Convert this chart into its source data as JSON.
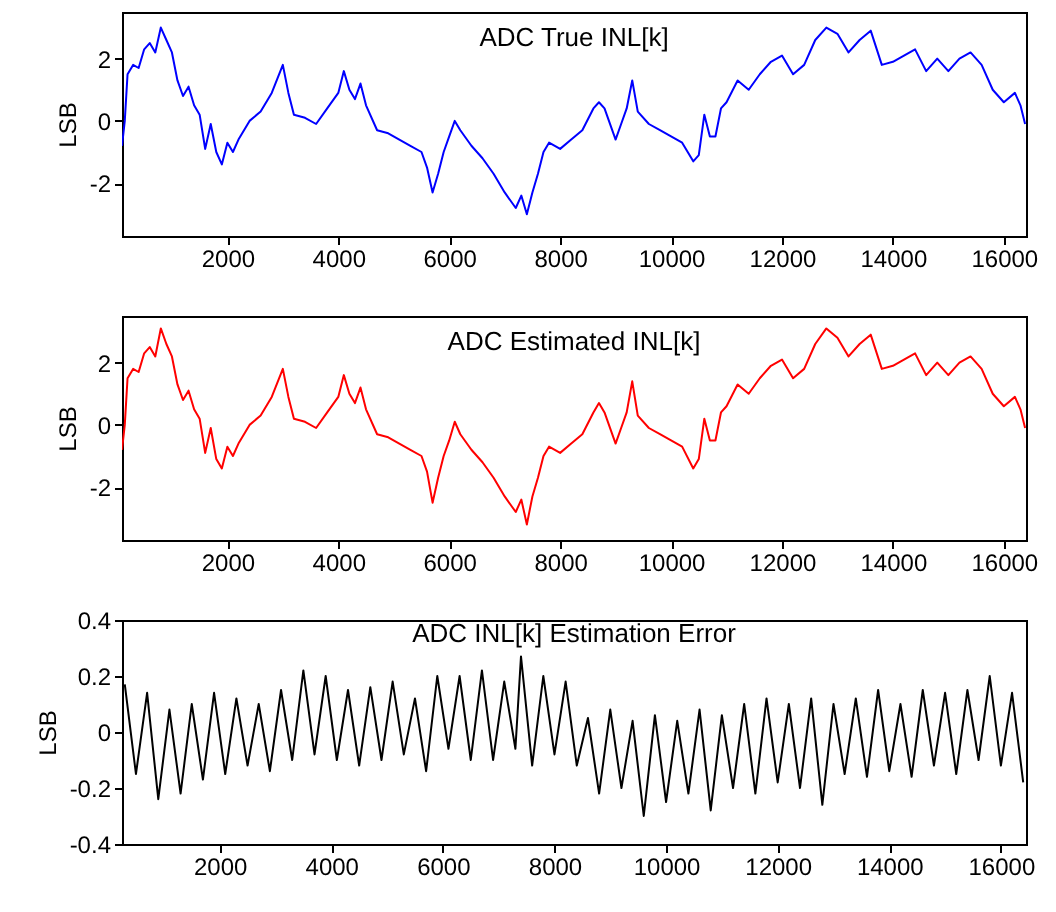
{
  "chart_data": [
    {
      "type": "line",
      "title": "ADC True INL[k]",
      "ylabel": "LSB",
      "xlim": [
        100,
        16400
      ],
      "xticks": [
        2000,
        4000,
        6000,
        8000,
        10000,
        12000,
        14000,
        16000
      ],
      "ylim": [
        -3.7,
        3.5
      ],
      "yticks": [
        -2,
        0,
        2
      ],
      "x": [
        100,
        150,
        200,
        300,
        400,
        500,
        600,
        700,
        800,
        900,
        1000,
        1100,
        1200,
        1300,
        1400,
        1500,
        1600,
        1700,
        1800,
        1900,
        2000,
        2100,
        2200,
        2400,
        2600,
        2800,
        3000,
        3100,
        3200,
        3400,
        3600,
        3800,
        4000,
        4100,
        4200,
        4300,
        4400,
        4500,
        4700,
        4900,
        5100,
        5300,
        5500,
        5600,
        5700,
        5800,
        5900,
        6000,
        6100,
        6200,
        6400,
        6600,
        6800,
        7000,
        7200,
        7300,
        7400,
        7500,
        7600,
        7700,
        7800,
        8000,
        8200,
        8400,
        8600,
        8700,
        8800,
        9000,
        9100,
        9200,
        9300,
        9400,
        9600,
        9800,
        10000,
        10200,
        10400,
        10500,
        10600,
        10700,
        10800,
        10900,
        11000,
        11200,
        11400,
        11600,
        11800,
        12000,
        12200,
        12400,
        12600,
        12800,
        13000,
        13200,
        13400,
        13600,
        13800,
        14000,
        14200,
        14400,
        14600,
        14800,
        15000,
        15200,
        15400,
        15600,
        15800,
        16000,
        16200,
        16300,
        16384
      ],
      "series": [
        {
          "color": "#0000ff",
          "values": [
            -0.8,
            0,
            1.5,
            1.8,
            1.7,
            2.3,
            2.5,
            2.2,
            3.0,
            2.6,
            2.2,
            1.3,
            0.8,
            1.1,
            0.5,
            0.2,
            -0.9,
            -0.1,
            -1.0,
            -1.4,
            -0.7,
            -1.0,
            -0.6,
            0,
            0.3,
            0.9,
            1.8,
            0.9,
            0.2,
            0.1,
            -0.1,
            0.4,
            0.9,
            1.6,
            1.0,
            0.7,
            1.2,
            0.5,
            -0.3,
            -0.4,
            -0.6,
            -0.8,
            -1.0,
            -1.5,
            -2.3,
            -1.7,
            -1.0,
            -0.5,
            0.0,
            -0.3,
            -0.8,
            -1.2,
            -1.7,
            -2.3,
            -2.8,
            -2.4,
            -3.0,
            -2.3,
            -1.7,
            -1.0,
            -0.7,
            -0.9,
            -0.6,
            -0.3,
            0.4,
            0.6,
            0.4,
            -0.6,
            -0.1,
            0.4,
            1.3,
            0.3,
            -0.1,
            -0.3,
            -0.5,
            -0.7,
            -1.3,
            -1.1,
            0.2,
            -0.5,
            -0.5,
            0.4,
            0.6,
            1.3,
            1.0,
            1.5,
            1.9,
            2.1,
            1.5,
            1.8,
            2.6,
            3.0,
            2.8,
            2.2,
            2.6,
            2.9,
            1.8,
            1.9,
            2.1,
            2.3,
            1.6,
            2.0,
            1.6,
            2.0,
            2.2,
            1.8,
            1.0,
            0.6,
            0.9,
            0.5,
            -0.1
          ]
        }
      ]
    },
    {
      "type": "line",
      "title": "ADC Estimated INL[k]",
      "ylabel": "LSB",
      "xlim": [
        100,
        16400
      ],
      "xticks": [
        2000,
        4000,
        6000,
        8000,
        10000,
        12000,
        14000,
        16000
      ],
      "ylim": [
        -3.7,
        3.5
      ],
      "yticks": [
        -2,
        0,
        2
      ],
      "x": [
        100,
        150,
        200,
        300,
        400,
        500,
        600,
        700,
        800,
        900,
        1000,
        1100,
        1200,
        1300,
        1400,
        1500,
        1600,
        1700,
        1800,
        1900,
        2000,
        2100,
        2200,
        2400,
        2600,
        2800,
        3000,
        3100,
        3200,
        3400,
        3600,
        3800,
        4000,
        4100,
        4200,
        4300,
        4400,
        4500,
        4700,
        4900,
        5100,
        5300,
        5500,
        5600,
        5700,
        5800,
        5900,
        6000,
        6100,
        6200,
        6400,
        6600,
        6800,
        7000,
        7200,
        7300,
        7400,
        7500,
        7600,
        7700,
        7800,
        8000,
        8200,
        8400,
        8600,
        8700,
        8800,
        9000,
        9100,
        9200,
        9300,
        9400,
        9600,
        9800,
        10000,
        10200,
        10400,
        10500,
        10600,
        10700,
        10800,
        10900,
        11000,
        11200,
        11400,
        11600,
        11800,
        12000,
        12200,
        12400,
        12600,
        12800,
        13000,
        13200,
        13400,
        13600,
        13800,
        14000,
        14200,
        14400,
        14600,
        14800,
        15000,
        15200,
        15400,
        15600,
        15800,
        16000,
        16200,
        16300,
        16384
      ],
      "series": [
        {
          "color": "#ff0000",
          "values": [
            -0.8,
            0,
            1.5,
            1.8,
            1.7,
            2.3,
            2.5,
            2.2,
            3.1,
            2.6,
            2.2,
            1.3,
            0.8,
            1.1,
            0.5,
            0.2,
            -0.9,
            -0.1,
            -1.1,
            -1.4,
            -0.7,
            -1.0,
            -0.6,
            0,
            0.3,
            0.9,
            1.8,
            0.9,
            0.2,
            0.1,
            -0.1,
            0.4,
            0.9,
            1.6,
            1.0,
            0.7,
            1.2,
            0.5,
            -0.3,
            -0.4,
            -0.6,
            -0.8,
            -1.0,
            -1.5,
            -2.5,
            -1.7,
            -1.0,
            -0.5,
            0.1,
            -0.3,
            -0.8,
            -1.2,
            -1.7,
            -2.3,
            -2.8,
            -2.4,
            -3.2,
            -2.3,
            -1.7,
            -1.0,
            -0.7,
            -0.9,
            -0.6,
            -0.3,
            0.4,
            0.7,
            0.4,
            -0.6,
            -0.1,
            0.4,
            1.4,
            0.3,
            -0.1,
            -0.3,
            -0.5,
            -0.7,
            -1.4,
            -1.1,
            0.2,
            -0.5,
            -0.5,
            0.4,
            0.6,
            1.3,
            1.0,
            1.5,
            1.9,
            2.1,
            1.5,
            1.8,
            2.6,
            3.1,
            2.8,
            2.2,
            2.6,
            2.9,
            1.8,
            1.9,
            2.1,
            2.3,
            1.6,
            2.0,
            1.6,
            2.0,
            2.2,
            1.8,
            1.0,
            0.6,
            0.9,
            0.5,
            -0.1
          ]
        }
      ]
    },
    {
      "type": "line",
      "title": "ADC INL[k] Estimation Error",
      "ylabel": "LSB",
      "xlim": [
        250,
        16450
      ],
      "xticks": [
        2000,
        4000,
        6000,
        8000,
        10000,
        12000,
        14000,
        16000
      ],
      "ylim": [
        -0.4,
        0.4
      ],
      "yticks": [
        -0.4,
        -0.2,
        0,
        0.2,
        0.4
      ],
      "x": [
        300,
        500,
        700,
        900,
        1100,
        1300,
        1500,
        1700,
        1900,
        2100,
        2300,
        2500,
        2700,
        2900,
        3100,
        3300,
        3500,
        3700,
        3900,
        4100,
        4300,
        4500,
        4700,
        4900,
        5100,
        5300,
        5500,
        5700,
        5900,
        6100,
        6300,
        6500,
        6700,
        6900,
        7100,
        7300,
        7400,
        7600,
        7800,
        8000,
        8200,
        8400,
        8600,
        8800,
        9000,
        9200,
        9400,
        9600,
        9800,
        10000,
        10200,
        10400,
        10600,
        10800,
        11000,
        11200,
        11400,
        11600,
        11800,
        12000,
        12200,
        12400,
        12600,
        12800,
        13000,
        13200,
        13400,
        13600,
        13800,
        14000,
        14200,
        14400,
        14600,
        14800,
        15000,
        15200,
        15400,
        15600,
        15800,
        16000,
        16200,
        16400
      ],
      "series": [
        {
          "color": "#000000",
          "values": [
            0.17,
            -0.15,
            0.14,
            -0.24,
            0.08,
            -0.22,
            0.1,
            -0.17,
            0.14,
            -0.15,
            0.12,
            -0.12,
            0.1,
            -0.14,
            0.15,
            -0.1,
            0.22,
            -0.08,
            0.2,
            -0.1,
            0.15,
            -0.12,
            0.16,
            -0.1,
            0.18,
            -0.08,
            0.12,
            -0.14,
            0.2,
            -0.06,
            0.2,
            -0.1,
            0.22,
            -0.1,
            0.18,
            -0.06,
            0.27,
            -0.12,
            0.2,
            -0.08,
            0.18,
            -0.12,
            0.05,
            -0.22,
            0.08,
            -0.2,
            0.04,
            -0.3,
            0.06,
            -0.25,
            0.04,
            -0.22,
            0.08,
            -0.28,
            0.06,
            -0.2,
            0.1,
            -0.22,
            0.12,
            -0.18,
            0.1,
            -0.2,
            0.12,
            -0.26,
            0.1,
            -0.15,
            0.12,
            -0.16,
            0.15,
            -0.14,
            0.1,
            -0.16,
            0.15,
            -0.12,
            0.14,
            -0.15,
            0.15,
            -0.1,
            0.2,
            -0.12,
            0.14,
            -0.18
          ]
        }
      ]
    }
  ]
}
